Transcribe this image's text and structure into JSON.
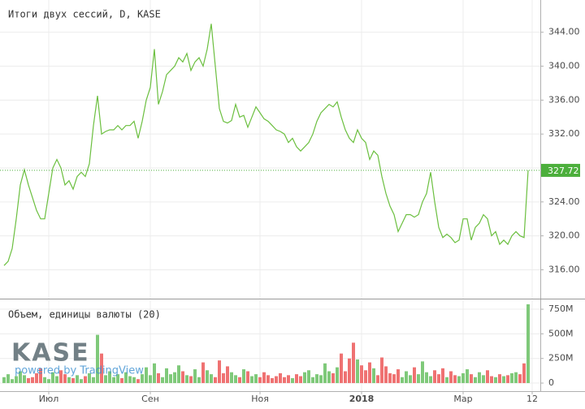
{
  "logo": "KASE",
  "watermark": "powered by TradingView",
  "chart_data": [
    {
      "type": "line",
      "title": "Итоги двух сессий, D, KASE",
      "color": "#6bbf3f",
      "last_label_color": "#4caf3c",
      "grid": true,
      "ylim": [
        312.6,
        347.8
      ],
      "yticks": [
        {
          "value": 316,
          "label": "316.00"
        },
        {
          "value": 320,
          "label": "320.00"
        },
        {
          "value": 324,
          "label": "324.00"
        },
        {
          "value": 328,
          "label": "328.00"
        },
        {
          "value": 332,
          "label": "332.00"
        },
        {
          "value": 336,
          "label": "336.00"
        },
        {
          "value": 340,
          "label": "340.00"
        },
        {
          "value": 344,
          "label": "344.00"
        }
      ],
      "series": [
        {
          "name": "Итоги двух сессий",
          "color": "#6bbf3f",
          "values": [
            316.5,
            317,
            318.5,
            322,
            326,
            327.8,
            326,
            324.5,
            323,
            322,
            322,
            325,
            328,
            329,
            328,
            326,
            326.5,
            325.5,
            327,
            327.5,
            327,
            328.5,
            333,
            336.5,
            332,
            332.3,
            332.5,
            332.5,
            333,
            332.5,
            333,
            333,
            333.5,
            331.5,
            333.5,
            336,
            337.5,
            342,
            335.5,
            337,
            339,
            339.5,
            340,
            341,
            340.5,
            341.5,
            339.5,
            340.5,
            341,
            340,
            342,
            345,
            340,
            335,
            333.5,
            333.3,
            333.6,
            335.5,
            334,
            334.2,
            332.8,
            334,
            335.2,
            334.5,
            333.8,
            333.5,
            333,
            332.5,
            332.3,
            332,
            331,
            331.5,
            330.5,
            330,
            330.5,
            331,
            332,
            333.5,
            334.5,
            335,
            335.5,
            335.2,
            335.8,
            334,
            332.5,
            331.5,
            331,
            332.5,
            331.5,
            331,
            329,
            330,
            329.5,
            327,
            325,
            323.5,
            322.5,
            320.5,
            321.5,
            322.5,
            322.5,
            322.2,
            322.5,
            324,
            325,
            327.5,
            324,
            321,
            319.8,
            320.2,
            319.8,
            319.2,
            319.5,
            322,
            322,
            319.5,
            321,
            321.5,
            322.5,
            322,
            320,
            320.5,
            319,
            319.5,
            319,
            320,
            320.5,
            320,
            319.8,
            327.72
          ]
        }
      ]
    },
    {
      "type": "bar",
      "title": "Объем, единицы валюты (20)",
      "up_color": "#7fc97a",
      "down_color": "#ef7272",
      "grid": true,
      "ylim": [
        -82,
        841
      ],
      "yticks": [
        0,
        {
          "value": 250,
          "label": "250M"
        },
        {
          "value": 500,
          "label": "500M"
        },
        {
          "value": 750,
          "label": "750M"
        }
      ],
      "xlim": [
        -1,
        132
      ],
      "xticks": [
        {
          "value": 11,
          "label": "Июл"
        },
        {
          "value": 36,
          "label": "Сен"
        },
        {
          "value": 63,
          "label": "Ноя"
        },
        {
          "value": 88,
          "label": "2018"
        },
        {
          "value": 113,
          "label": "Мар"
        },
        {
          "value": 130,
          "label": "12"
        }
      ],
      "values": [
        60,
        90,
        40,
        70,
        120,
        80,
        50,
        60,
        100,
        150,
        60,
        40,
        110,
        70,
        130,
        90,
        60,
        50,
        80,
        40,
        70,
        100,
        60,
        490,
        300,
        80,
        120,
        60,
        90,
        50,
        110,
        70,
        60,
        40,
        90,
        160,
        80,
        200,
        100,
        60,
        150,
        90,
        110,
        180,
        120,
        80,
        70,
        140,
        60,
        210,
        130,
        90,
        60,
        230,
        100,
        170,
        110,
        80,
        60,
        140,
        120,
        70,
        90,
        60,
        110,
        80,
        50,
        70,
        100,
        60,
        80,
        50,
        90,
        70,
        110,
        130,
        60,
        90,
        80,
        200,
        120,
        100,
        160,
        300,
        120,
        250,
        410,
        240,
        180,
        130,
        210,
        150,
        80,
        260,
        170,
        100,
        90,
        140,
        60,
        120,
        80,
        160,
        90,
        220,
        110,
        70,
        130,
        90,
        150,
        60,
        120,
        80,
        70,
        100,
        140,
        90,
        60,
        110,
        80,
        130,
        70,
        60,
        90,
        70,
        80,
        100,
        110,
        90,
        200,
        800
      ]
    }
  ]
}
